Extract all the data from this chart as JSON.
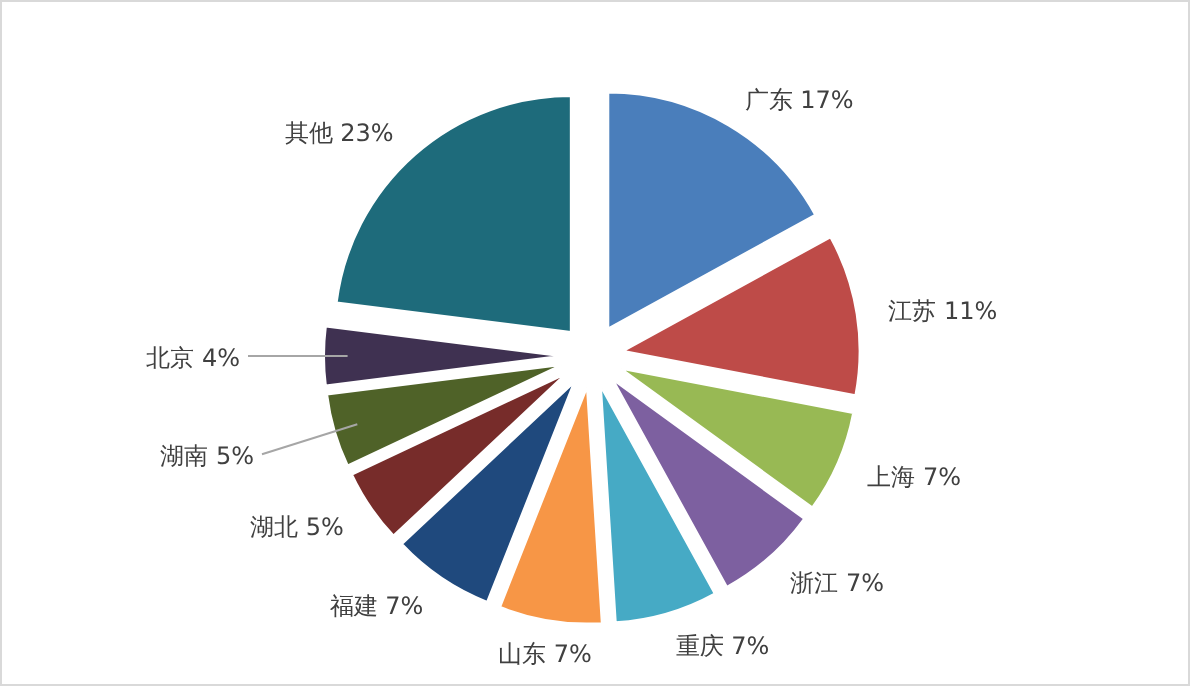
{
  "chart_data": {
    "type": "pie",
    "categories": [
      "广东",
      "江苏",
      "上海",
      "浙江",
      "重庆",
      "山东",
      "福建",
      "湖北",
      "湖南",
      "北京",
      "其他"
    ],
    "values": [
      17,
      11,
      7,
      7,
      7,
      7,
      7,
      5,
      5,
      4,
      23
    ],
    "colors": [
      "#4a7ebb",
      "#be4b48",
      "#98b954",
      "#7d60a0",
      "#46aac5",
      "#f79646",
      "#1f497d",
      "#772c2a",
      "#4f6228",
      "#3f3151",
      "#1e6b7b"
    ],
    "value_labels": [
      "17%",
      "11%",
      "7%",
      "7%",
      "7%",
      "7%",
      "7%",
      "5%",
      "5%",
      "4%",
      "23%"
    ]
  }
}
